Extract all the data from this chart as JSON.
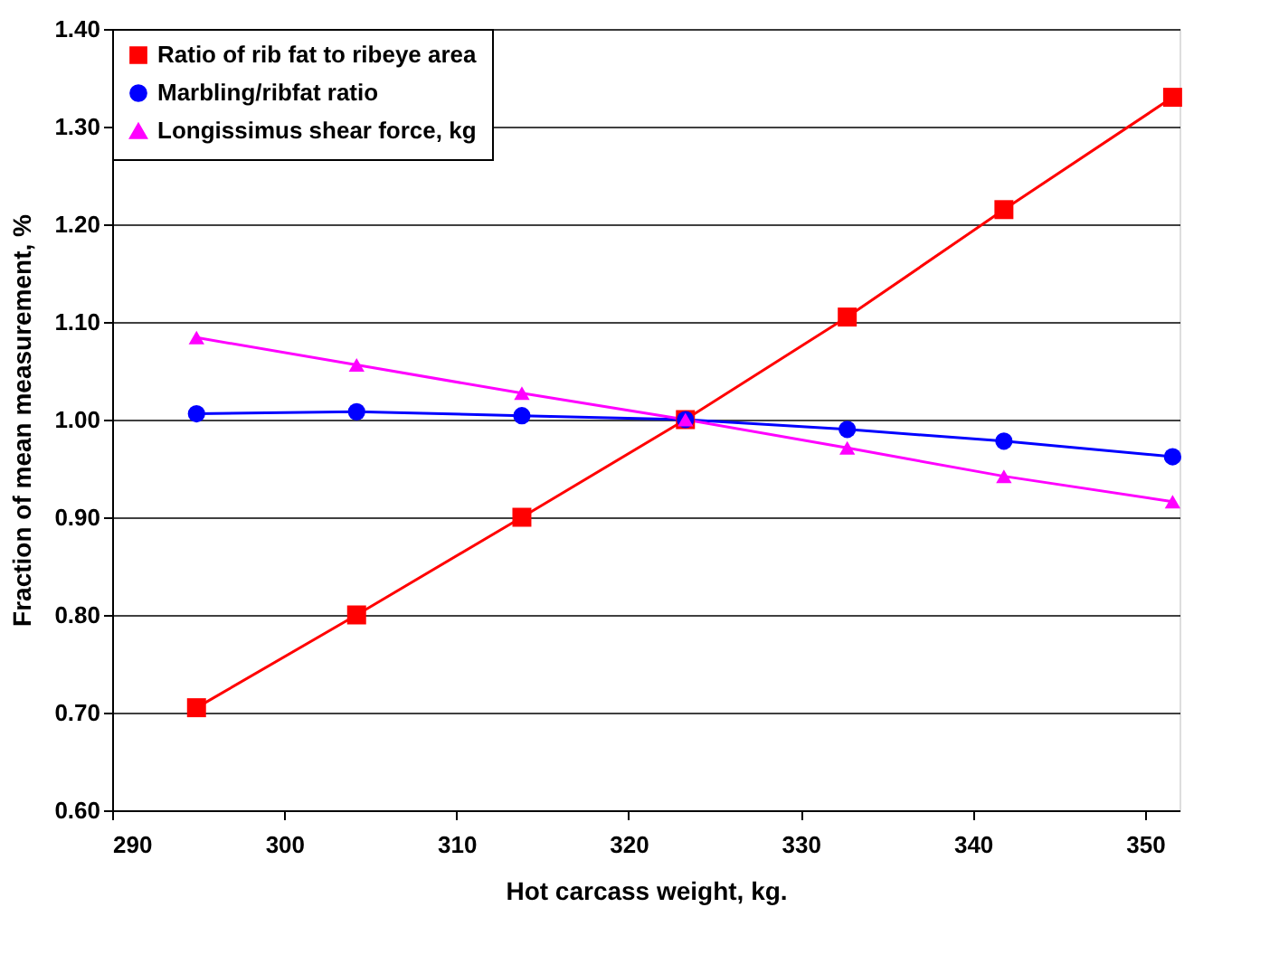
{
  "chart_data": {
    "type": "line",
    "xlabel": "Hot carcass weight, kg.",
    "ylabel": "Fraction of mean measurement, %",
    "x": [
      294.9,
      304.2,
      313.8,
      323.3,
      332.7,
      341.8,
      351.6
    ],
    "series": [
      {
        "name": "Ratio of rib fat to ribeye area",
        "color": "#ff0000",
        "marker": "square",
        "values": [
          0.705,
          0.8,
          0.9,
          1.0,
          1.105,
          1.215,
          1.33
        ]
      },
      {
        "name": "Marbling/ribfat ratio",
        "color": "#0000ff",
        "marker": "circle",
        "values": [
          1.006,
          1.008,
          1.004,
          1.0,
          0.99,
          0.978,
          0.962
        ]
      },
      {
        "name": "Longissimus shear force, kg",
        "color": "#ff00ff",
        "marker": "triangle",
        "values": [
          1.084,
          1.056,
          1.027,
          1.0,
          0.971,
          0.942,
          0.916
        ]
      }
    ],
    "xlim": [
      290,
      352
    ],
    "xticks": [
      290,
      300,
      310,
      320,
      330,
      340,
      350
    ],
    "ylim": [
      0.6,
      1.4
    ],
    "yticks": [
      {
        "value": 0.6,
        "label": "0.60"
      },
      {
        "value": 0.7,
        "label": "0.70"
      },
      {
        "value": 0.8,
        "label": "0.80"
      },
      {
        "value": 0.9,
        "label": "0.90"
      },
      {
        "value": 1.0,
        "label": "1.00"
      },
      {
        "value": 1.1,
        "label": "1.10"
      },
      {
        "value": 1.2,
        "label": "1.20"
      },
      {
        "value": 1.3,
        "label": "1.30"
      },
      {
        "value": 1.4,
        "label": "1.40"
      }
    ],
    "grid": "y",
    "legend": "top left"
  }
}
